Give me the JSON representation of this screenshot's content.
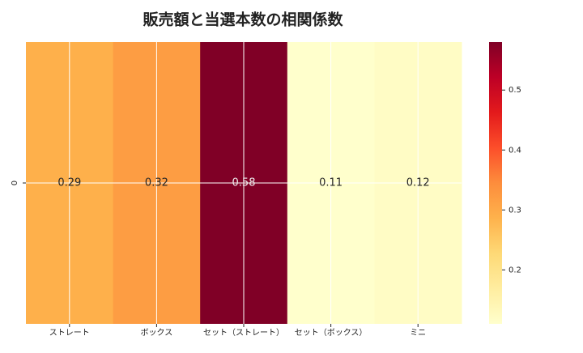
{
  "chart_data": {
    "type": "heatmap",
    "title": "販売額と当選本数の相関係数",
    "categories": [
      "ストレート",
      "ボックス",
      "セット（ストレート）",
      "セット（ボックス）",
      "ミニ"
    ],
    "rows": [
      "0"
    ],
    "values": [
      [
        0.29,
        0.32,
        0.58,
        0.11,
        0.12
      ]
    ],
    "colormap": "YlOrRd",
    "clim": [
      0.11,
      0.58
    ],
    "cticks": [
      0.2,
      0.3,
      0.4,
      0.5
    ],
    "grid": true
  }
}
